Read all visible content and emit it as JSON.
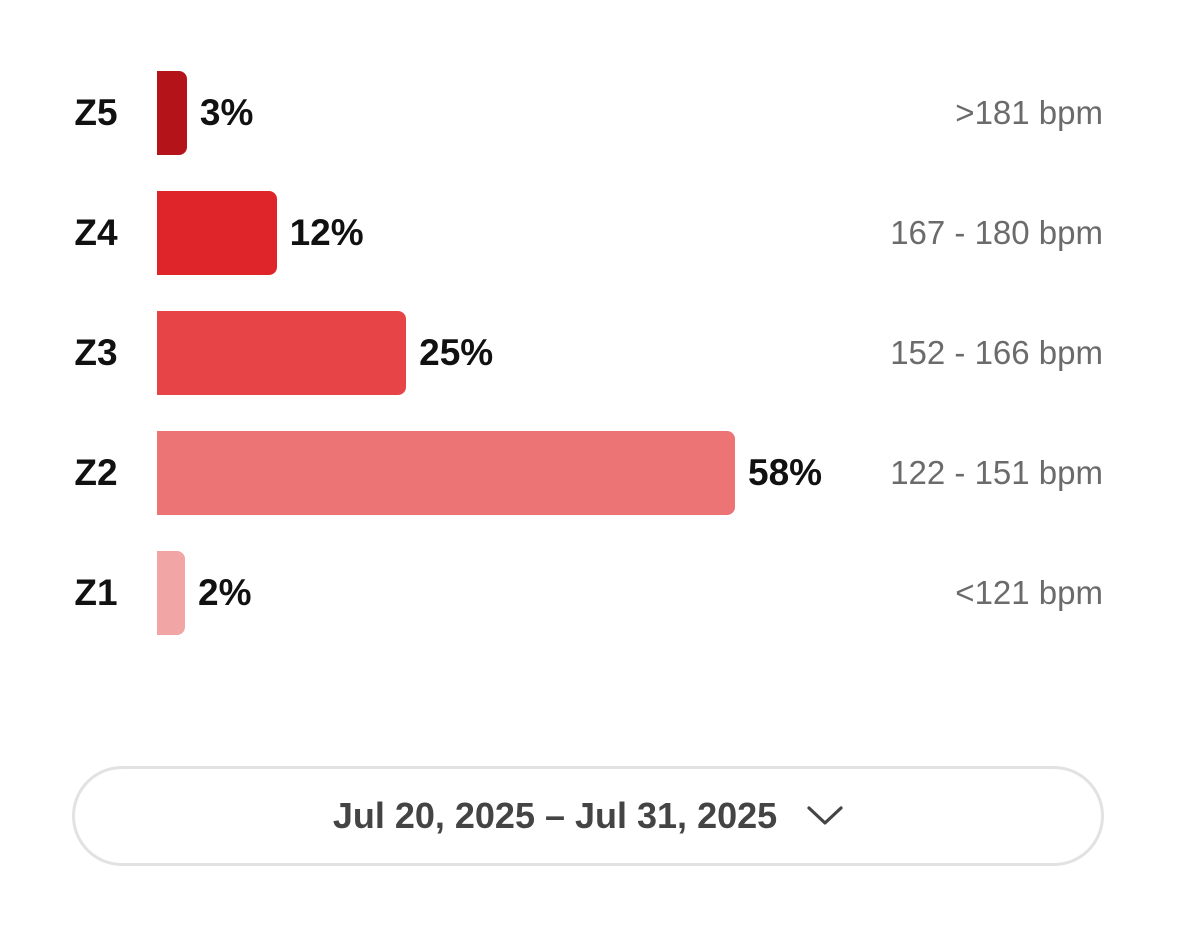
{
  "heart_rate_zones": [
    {
      "zone": "Z5",
      "percent_label": "3%",
      "percent": 3,
      "range": ">181 bpm",
      "color": "#b41419"
    },
    {
      "zone": "Z4",
      "percent_label": "12%",
      "percent": 12,
      "range": "167 - 180 bpm",
      "color": "#df252a"
    },
    {
      "zone": "Z3",
      "percent_label": "25%",
      "percent": 25,
      "range": "152 - 166 bpm",
      "color": "#e64446"
    },
    {
      "zone": "Z2",
      "percent_label": "58%",
      "percent": 58,
      "range": "122 - 151 bpm",
      "color": "#ec7474"
    },
    {
      "zone": "Z1",
      "percent_label": "2%",
      "percent": 2,
      "range": "<121 bpm",
      "color": "#f1a5a5"
    }
  ],
  "date_selector": {
    "label": "Jul 20, 2025 – Jul 31, 2025",
    "icon": "chevron-down-icon"
  }
}
